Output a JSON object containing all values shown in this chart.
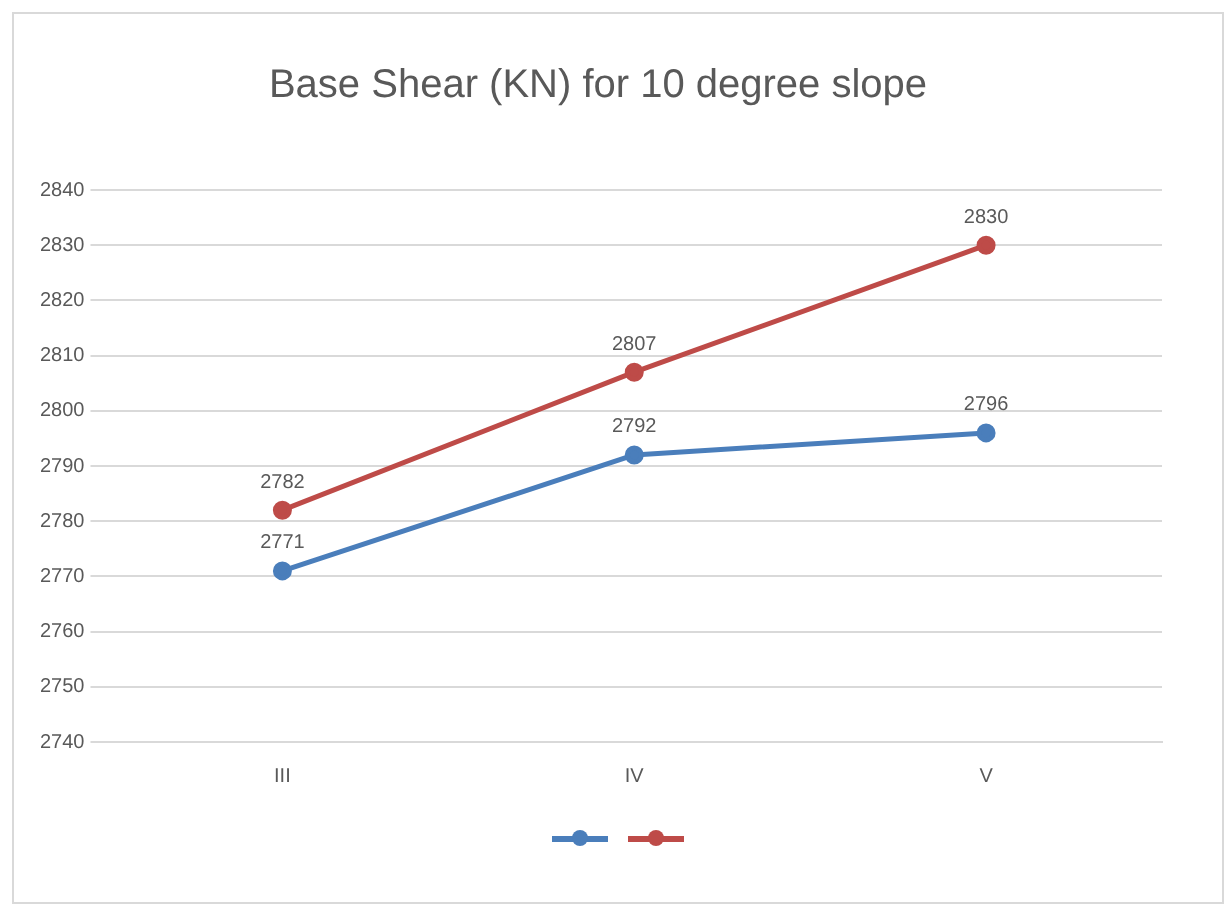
{
  "chart_data": {
    "type": "line",
    "title": "Base Shear (KN) for 10 degree slope",
    "categories": [
      "III",
      "IV",
      "V"
    ],
    "series": [
      {
        "color": "#4a7ebb",
        "values": [
          2771,
          2792,
          2796
        ]
      },
      {
        "color": "#be4b48",
        "values": [
          2782,
          2807,
          2830
        ]
      }
    ],
    "ylim": [
      2740,
      2840
    ],
    "yticks": [
      2740,
      2750,
      2760,
      2770,
      2780,
      2790,
      2800,
      2810,
      2820,
      2830,
      2840
    ],
    "grid": "y",
    "marker": "circle",
    "line_style": "solid",
    "data_labels": true
  }
}
